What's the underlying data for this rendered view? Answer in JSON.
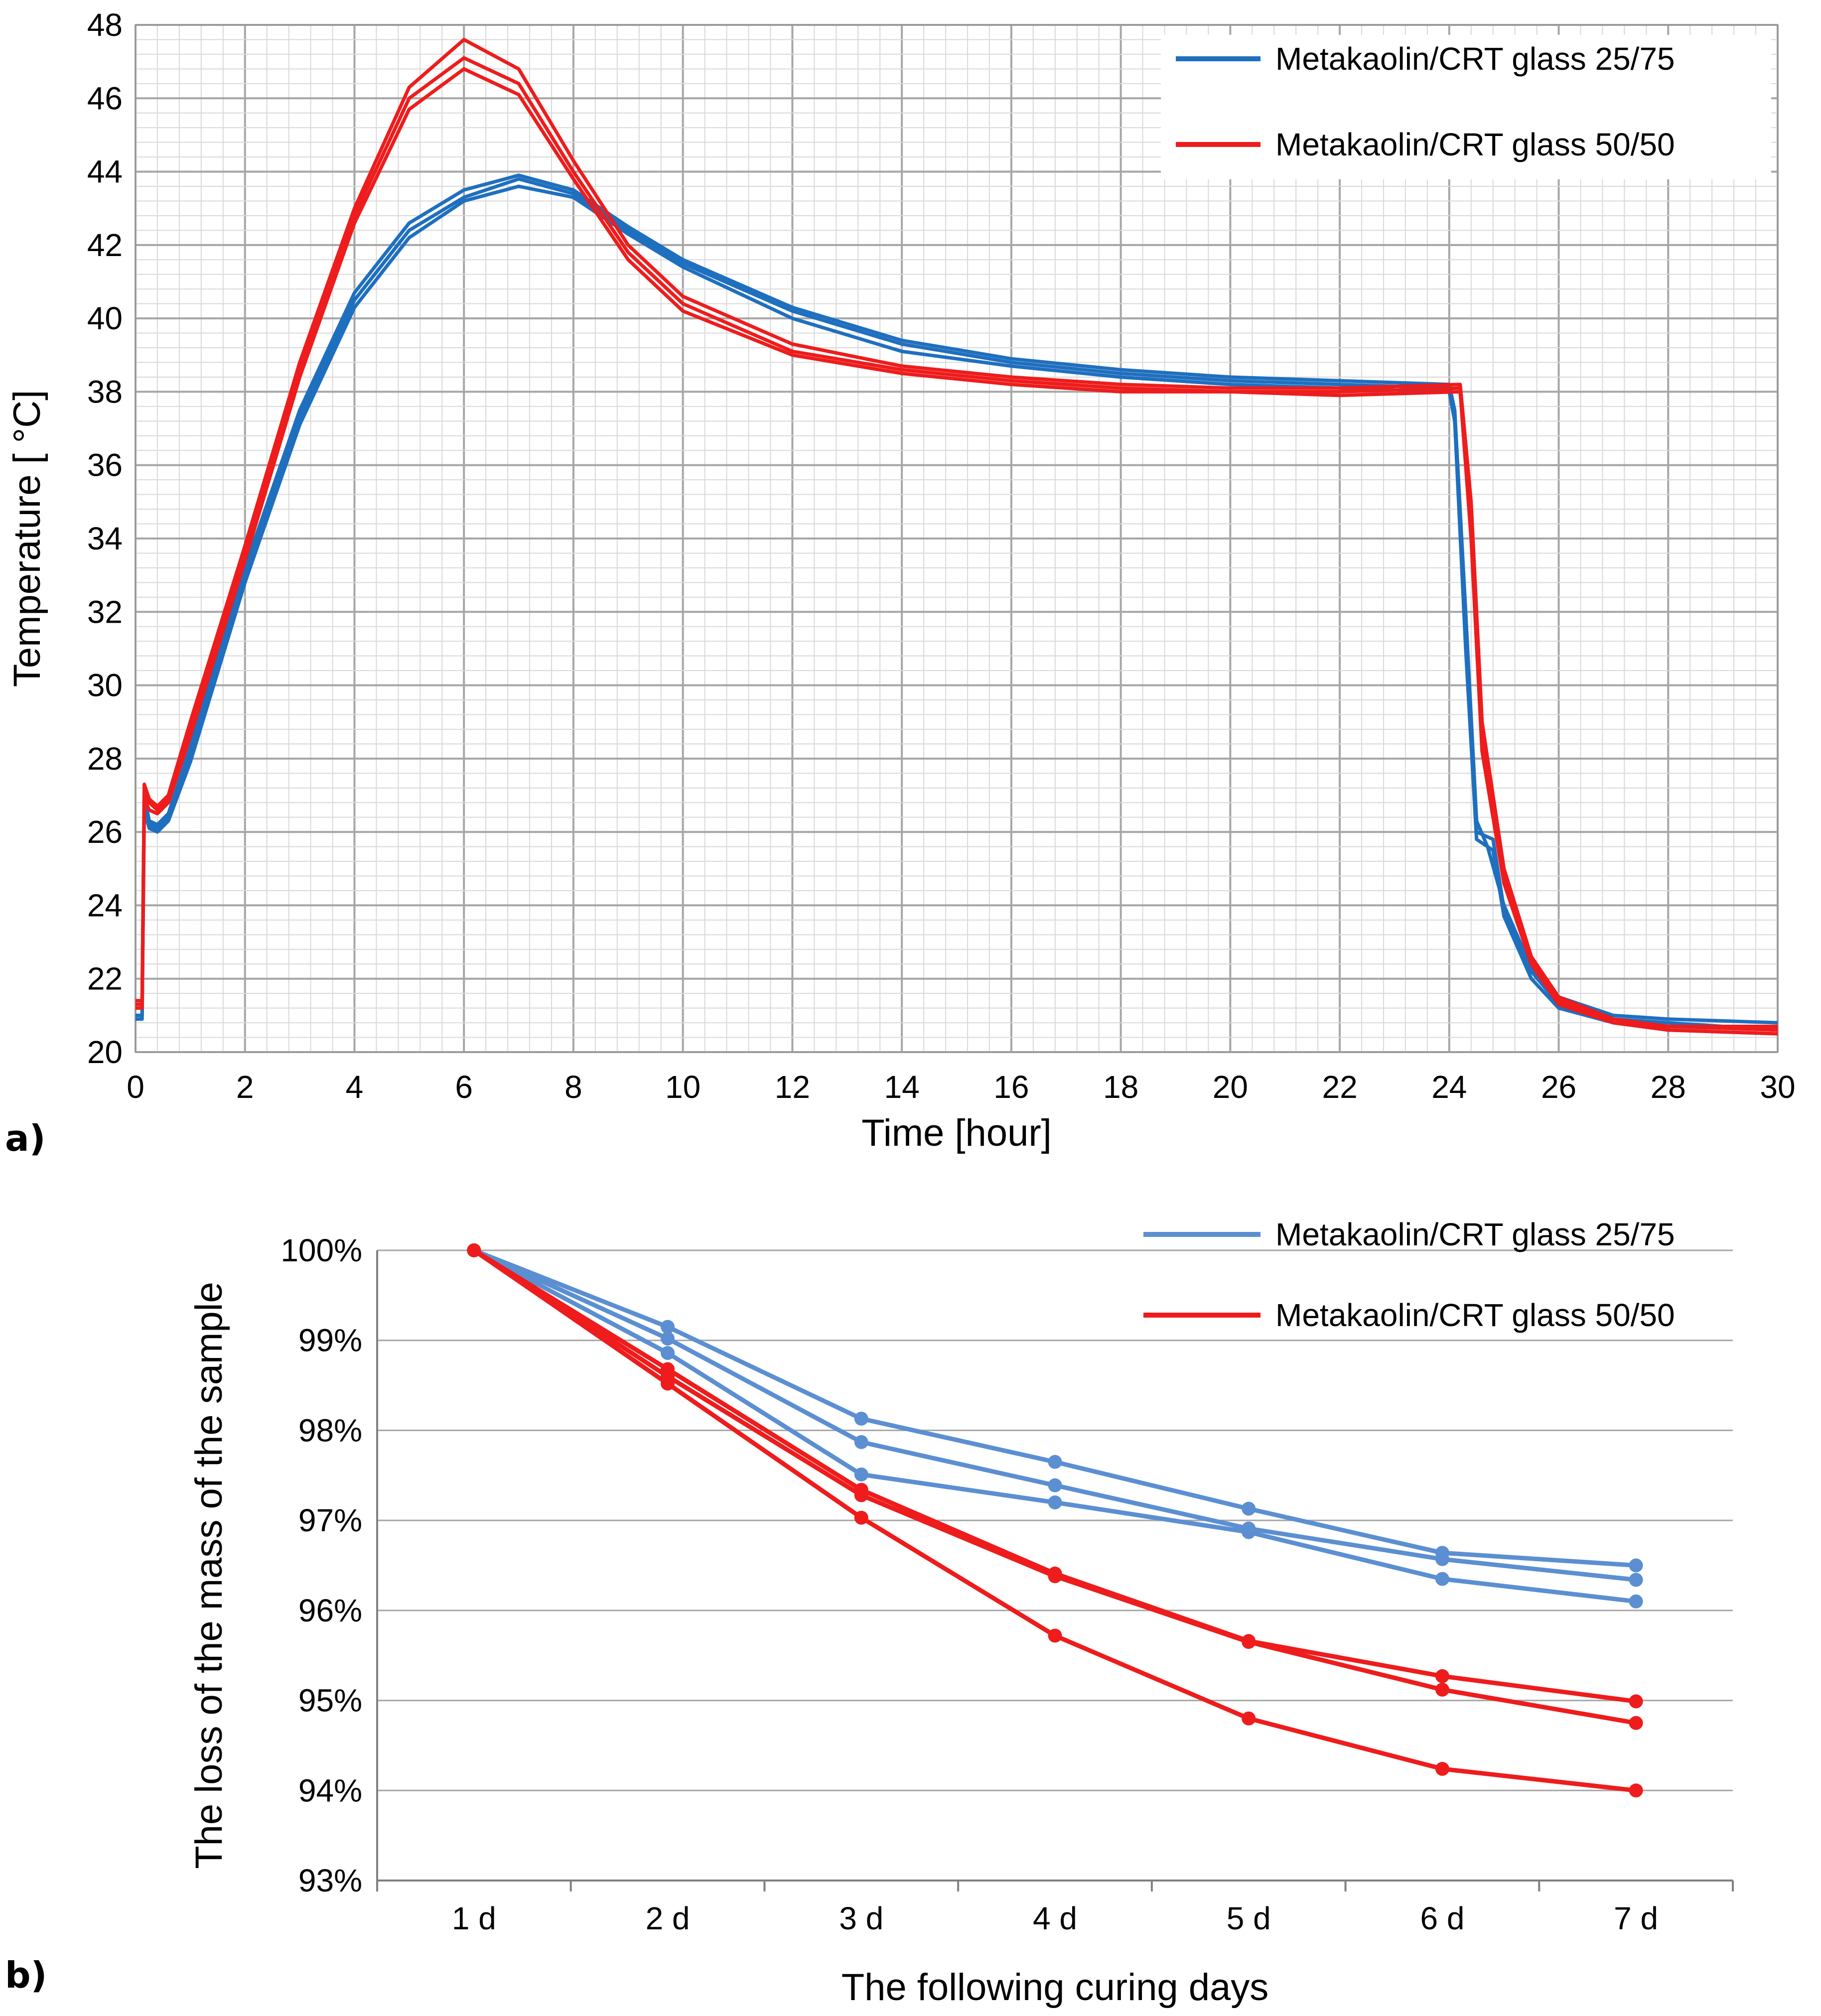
{
  "chart_data": [
    {
      "id": "a",
      "type": "line",
      "panel_label": "a)",
      "xlabel": "Time [hour]",
      "ylabel": "Temperature [ °C]",
      "xlim": [
        0,
        30
      ],
      "ylim": [
        20,
        48
      ],
      "x_ticks": [
        0,
        2,
        4,
        6,
        8,
        10,
        12,
        14,
        16,
        18,
        20,
        22,
        24,
        26,
        28,
        30
      ],
      "y_ticks": [
        20,
        22,
        24,
        26,
        28,
        30,
        32,
        34,
        36,
        38,
        40,
        42,
        44,
        46,
        48
      ],
      "grid": true,
      "legend_position": "top-right",
      "legend": [
        {
          "label": "Metakaolin/CRT  glass 25/75",
          "color": "#1f6fbf"
        },
        {
          "label": "Metakaolin/CRT  glass 50/50",
          "color": "#ee1c1c"
        }
      ],
      "series": [
        {
          "name": "Metakaolin/CRT glass 25/75 (sample 1)",
          "color": "#1f6fbf",
          "points": [
            [
              0,
              21.0
            ],
            [
              0.12,
              21.0
            ],
            [
              0.16,
              27.0
            ],
            [
              0.25,
              26.3
            ],
            [
              0.4,
              26.2
            ],
            [
              0.6,
              26.5
            ],
            [
              1,
              28.3
            ],
            [
              2,
              33.2
            ],
            [
              3,
              37.5
            ],
            [
              4,
              40.7
            ],
            [
              5,
              42.6
            ],
            [
              6,
              43.5
            ],
            [
              7,
              43.9
            ],
            [
              8,
              43.5
            ],
            [
              9,
              42.5
            ],
            [
              10,
              41.6
            ],
            [
              12,
              40.3
            ],
            [
              14,
              39.4
            ],
            [
              16,
              38.9
            ],
            [
              18,
              38.6
            ],
            [
              20,
              38.4
            ],
            [
              22,
              38.3
            ],
            [
              24,
              38.2
            ],
            [
              24.1,
              37.5
            ],
            [
              24.3,
              32.0
            ],
            [
              24.5,
              26.3
            ],
            [
              24.7,
              25.6
            ],
            [
              25.0,
              24.0
            ],
            [
              25.5,
              22.3
            ],
            [
              26,
              21.5
            ],
            [
              27,
              21.0
            ],
            [
              28,
              20.9
            ],
            [
              30,
              20.8
            ]
          ]
        },
        {
          "name": "Metakaolin/CRT glass 25/75 (sample 2)",
          "color": "#1f6fbf",
          "points": [
            [
              0,
              21.0
            ],
            [
              0.12,
              21.0
            ],
            [
              0.16,
              26.8
            ],
            [
              0.25,
              26.2
            ],
            [
              0.4,
              26.1
            ],
            [
              0.6,
              26.4
            ],
            [
              1,
              28.1
            ],
            [
              2,
              33.0
            ],
            [
              3,
              37.3
            ],
            [
              4,
              40.5
            ],
            [
              5,
              42.4
            ],
            [
              6,
              43.3
            ],
            [
              7,
              43.8
            ],
            [
              8,
              43.4
            ],
            [
              9,
              42.4
            ],
            [
              10,
              41.5
            ],
            [
              12,
              40.2
            ],
            [
              14,
              39.3
            ],
            [
              16,
              38.8
            ],
            [
              18,
              38.5
            ],
            [
              20,
              38.3
            ],
            [
              22,
              38.2
            ],
            [
              24,
              38.1
            ],
            [
              24.1,
              37.3
            ],
            [
              24.3,
              31.5
            ],
            [
              24.5,
              26.0
            ],
            [
              24.8,
              25.8
            ],
            [
              25.0,
              23.9
            ],
            [
              25.5,
              22.2
            ],
            [
              26,
              21.3
            ],
            [
              27,
              20.9
            ],
            [
              28,
              20.8
            ],
            [
              30,
              20.6
            ]
          ]
        },
        {
          "name": "Metakaolin/CRT glass 25/75 (sample 3)",
          "color": "#1f6fbf",
          "points": [
            [
              0,
              20.9
            ],
            [
              0.12,
              20.9
            ],
            [
              0.16,
              26.6
            ],
            [
              0.25,
              26.1
            ],
            [
              0.4,
              26.0
            ],
            [
              0.6,
              26.3
            ],
            [
              1,
              27.9
            ],
            [
              2,
              32.8
            ],
            [
              3,
              37.1
            ],
            [
              4,
              40.3
            ],
            [
              5,
              42.2
            ],
            [
              6,
              43.2
            ],
            [
              7,
              43.6
            ],
            [
              8,
              43.3
            ],
            [
              9,
              42.3
            ],
            [
              10,
              41.4
            ],
            [
              12,
              40.0
            ],
            [
              14,
              39.1
            ],
            [
              16,
              38.7
            ],
            [
              18,
              38.4
            ],
            [
              20,
              38.2
            ],
            [
              22,
              38.1
            ],
            [
              24,
              38.0
            ],
            [
              24.1,
              37.2
            ],
            [
              24.3,
              31.0
            ],
            [
              24.5,
              25.8
            ],
            [
              24.8,
              25.5
            ],
            [
              25.0,
              23.7
            ],
            [
              25.5,
              22.0
            ],
            [
              26,
              21.2
            ],
            [
              27,
              20.8
            ],
            [
              28,
              20.6
            ],
            [
              30,
              20.5
            ]
          ]
        },
        {
          "name": "Metakaolin/CRT glass 50/50 (sample 1)",
          "color": "#ee1c1c",
          "points": [
            [
              0,
              21.4
            ],
            [
              0.12,
              21.4
            ],
            [
              0.16,
              27.3
            ],
            [
              0.25,
              26.9
            ],
            [
              0.4,
              26.7
            ],
            [
              0.6,
              27.0
            ],
            [
              1,
              29.0
            ],
            [
              2,
              33.8
            ],
            [
              3,
              38.8
            ],
            [
              4,
              43.0
            ],
            [
              5,
              46.3
            ],
            [
              6,
              47.6
            ],
            [
              7,
              46.8
            ],
            [
              8,
              44.3
            ],
            [
              9,
              42.0
            ],
            [
              10,
              40.6
            ],
            [
              12,
              39.3
            ],
            [
              14,
              38.7
            ],
            [
              16,
              38.4
            ],
            [
              18,
              38.2
            ],
            [
              20,
              38.1
            ],
            [
              22,
              38.1
            ],
            [
              24.2,
              38.2
            ],
            [
              24.4,
              35.0
            ],
            [
              24.6,
              29.0
            ],
            [
              25,
              25.0
            ],
            [
              25.5,
              22.6
            ],
            [
              26,
              21.5
            ],
            [
              27,
              20.9
            ],
            [
              28,
              20.7
            ],
            [
              30,
              20.7
            ]
          ]
        },
        {
          "name": "Metakaolin/CRT glass 50/50 (sample 2)",
          "color": "#ee1c1c",
          "points": [
            [
              0,
              21.3
            ],
            [
              0.12,
              21.3
            ],
            [
              0.16,
              27.1
            ],
            [
              0.25,
              26.8
            ],
            [
              0.4,
              26.6
            ],
            [
              0.6,
              26.9
            ],
            [
              1,
              28.8
            ],
            [
              2,
              33.6
            ],
            [
              3,
              38.6
            ],
            [
              4,
              42.8
            ],
            [
              5,
              46.0
            ],
            [
              6,
              47.1
            ],
            [
              7,
              46.4
            ],
            [
              8,
              44.0
            ],
            [
              9,
              41.8
            ],
            [
              10,
              40.4
            ],
            [
              12,
              39.1
            ],
            [
              14,
              38.6
            ],
            [
              16,
              38.3
            ],
            [
              18,
              38.1
            ],
            [
              20,
              38.0
            ],
            [
              22,
              38.0
            ],
            [
              24.2,
              38.1
            ],
            [
              24.4,
              34.5
            ],
            [
              24.6,
              28.6
            ],
            [
              25,
              24.8
            ],
            [
              25.5,
              22.5
            ],
            [
              26,
              21.4
            ],
            [
              27,
              20.8
            ],
            [
              28,
              20.7
            ],
            [
              30,
              20.6
            ]
          ]
        },
        {
          "name": "Metakaolin/CRT glass 50/50 (sample 3)",
          "color": "#ee1c1c",
          "points": [
            [
              0,
              21.2
            ],
            [
              0.12,
              21.2
            ],
            [
              0.16,
              26.9
            ],
            [
              0.25,
              26.6
            ],
            [
              0.4,
              26.5
            ],
            [
              0.6,
              26.8
            ],
            [
              1,
              28.6
            ],
            [
              2,
              33.4
            ],
            [
              3,
              38.4
            ],
            [
              4,
              42.6
            ],
            [
              5,
              45.7
            ],
            [
              6,
              46.8
            ],
            [
              7,
              46.1
            ],
            [
              8,
              43.8
            ],
            [
              9,
              41.6
            ],
            [
              10,
              40.2
            ],
            [
              12,
              39.0
            ],
            [
              14,
              38.5
            ],
            [
              16,
              38.2
            ],
            [
              18,
              38.0
            ],
            [
              20,
              38.0
            ],
            [
              22,
              37.9
            ],
            [
              24.2,
              38.0
            ],
            [
              24.4,
              34.0
            ],
            [
              24.6,
              28.2
            ],
            [
              25,
              24.6
            ],
            [
              25.5,
              22.4
            ],
            [
              26,
              21.3
            ],
            [
              27,
              20.8
            ],
            [
              28,
              20.6
            ],
            [
              30,
              20.5
            ]
          ]
        }
      ]
    },
    {
      "id": "b",
      "type": "line",
      "panel_label": "b)",
      "xlabel": "The following  curing days",
      "ylabel": "The loss of the mass of the sample",
      "categories": [
        "1 d",
        "2 d",
        "3 d",
        "4 d",
        "5 d",
        "6 d",
        "7 d"
      ],
      "ylim": [
        93,
        100
      ],
      "y_ticks": [
        93,
        94,
        95,
        96,
        97,
        98,
        99,
        100
      ],
      "y_tick_labels": [
        "93%",
        "94%",
        "95%",
        "96%",
        "97%",
        "98%",
        "99%",
        "100%"
      ],
      "grid": true,
      "legend_position": "top-right",
      "legend": [
        {
          "label": "Metakaolin/CRT glass 25/75",
          "color": "#5b8fd2"
        },
        {
          "label": "Metakaolin/CRT glass 50/50",
          "color": "#ee1c1c"
        }
      ],
      "series": [
        {
          "name": "Metakaolin/CRT glass 25/75 (sample 1)",
          "color": "#5b8fd2",
          "values": [
            100,
            99.15,
            98.13,
            97.65,
            97.13,
            96.64,
            96.5
          ]
        },
        {
          "name": "Metakaolin/CRT glass 25/75 (sample 2)",
          "color": "#5b8fd2",
          "values": [
            100,
            99.02,
            97.87,
            97.39,
            96.91,
            96.57,
            96.34
          ]
        },
        {
          "name": "Metakaolin/CRT glass 25/75 (sample 3)",
          "color": "#5b8fd2",
          "values": [
            100,
            98.86,
            97.51,
            97.2,
            96.87,
            96.35,
            96.1
          ]
        },
        {
          "name": "Metakaolin/CRT glass 50/50 (sample 1)",
          "color": "#ee1c1c",
          "values": [
            100,
            98.68,
            97.34,
            96.41,
            95.66,
            95.27,
            94.99
          ]
        },
        {
          "name": "Metakaolin/CRT glass 50/50 (sample 2)",
          "color": "#ee1c1c",
          "values": [
            100,
            98.6,
            97.28,
            96.38,
            95.65,
            95.12,
            94.75
          ]
        },
        {
          "name": "Metakaolin/CRT glass 50/50 (sample 3)",
          "color": "#ee1c1c",
          "values": [
            100,
            98.52,
            97.03,
            95.72,
            94.8,
            94.24,
            94.0
          ]
        }
      ]
    }
  ]
}
